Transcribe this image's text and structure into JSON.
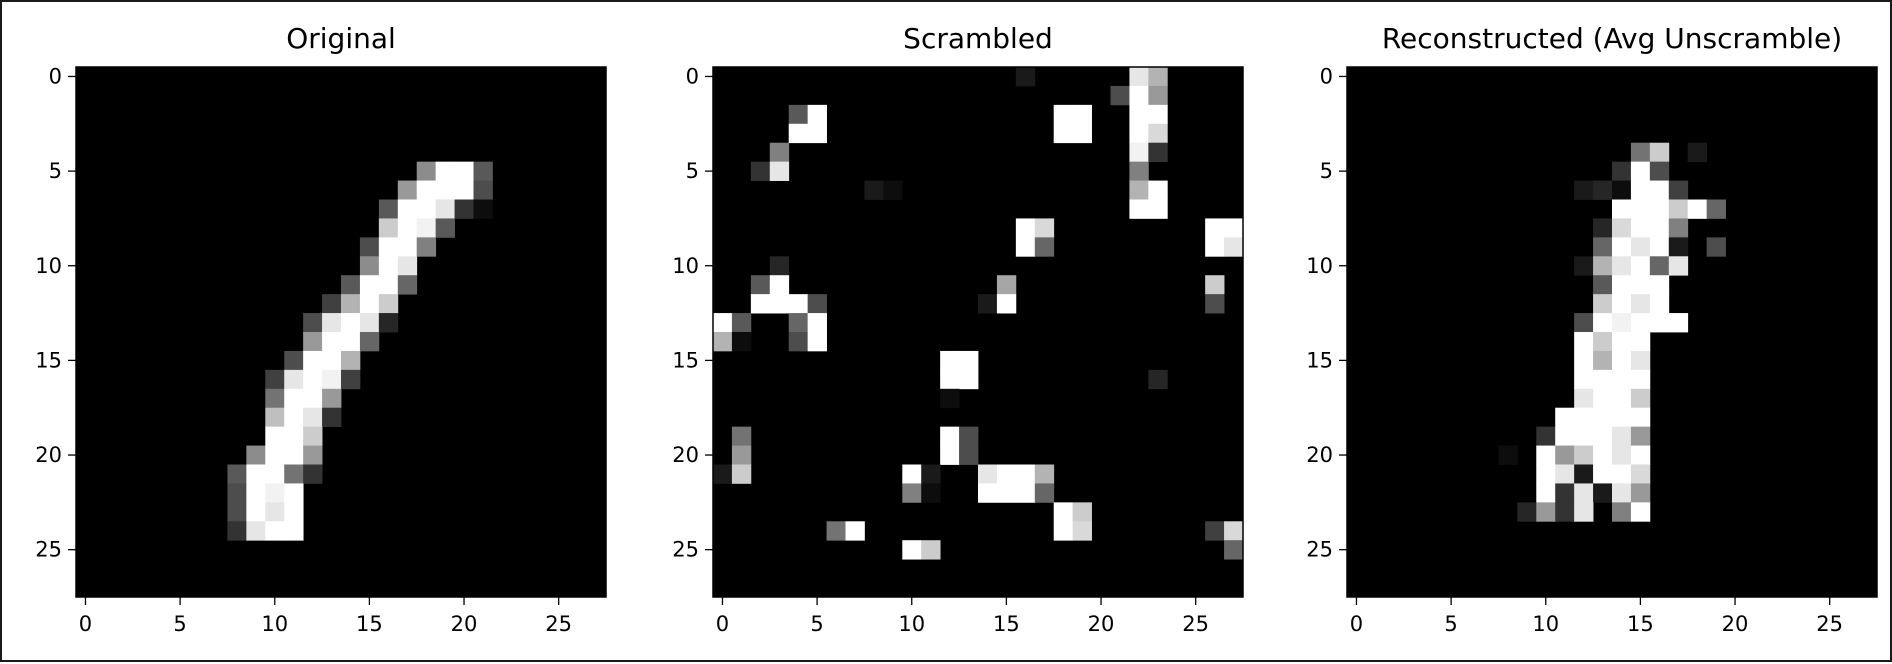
{
  "chart_data": [
    {
      "type": "heatmap",
      "title": "Original",
      "colormap": "gray",
      "shape": [
        28,
        28
      ],
      "xticks": [
        0,
        5,
        10,
        15,
        20,
        25
      ],
      "yticks": [
        0,
        5,
        10,
        15,
        20,
        25
      ],
      "background": 0,
      "pixels": [
        [
          5,
          18,
          0.55
        ],
        [
          5,
          19,
          1.0
        ],
        [
          5,
          20,
          1.0
        ],
        [
          5,
          21,
          0.35
        ],
        [
          6,
          17,
          0.6
        ],
        [
          6,
          18,
          1.0
        ],
        [
          6,
          19,
          1.0
        ],
        [
          6,
          20,
          1.0
        ],
        [
          6,
          21,
          0.3
        ],
        [
          7,
          16,
          0.35
        ],
        [
          7,
          17,
          1.0
        ],
        [
          7,
          18,
          1.0
        ],
        [
          7,
          19,
          0.9
        ],
        [
          7,
          20,
          0.2
        ],
        [
          7,
          21,
          0.05
        ],
        [
          8,
          16,
          0.8
        ],
        [
          8,
          17,
          1.0
        ],
        [
          8,
          18,
          0.95
        ],
        [
          8,
          19,
          0.35
        ],
        [
          9,
          15,
          0.3
        ],
        [
          9,
          16,
          1.0
        ],
        [
          9,
          17,
          1.0
        ],
        [
          9,
          18,
          0.5
        ],
        [
          10,
          15,
          0.55
        ],
        [
          10,
          16,
          1.0
        ],
        [
          10,
          17,
          0.9
        ],
        [
          11,
          14,
          0.35
        ],
        [
          11,
          15,
          1.0
        ],
        [
          11,
          16,
          1.0
        ],
        [
          11,
          17,
          0.4
        ],
        [
          12,
          13,
          0.25
        ],
        [
          12,
          14,
          0.7
        ],
        [
          12,
          15,
          1.0
        ],
        [
          12,
          16,
          0.8
        ],
        [
          13,
          12,
          0.3
        ],
        [
          13,
          13,
          0.9
        ],
        [
          13,
          14,
          1.0
        ],
        [
          13,
          15,
          0.9
        ],
        [
          13,
          16,
          0.15
        ],
        [
          14,
          12,
          0.6
        ],
        [
          14,
          13,
          1.0
        ],
        [
          14,
          14,
          1.0
        ],
        [
          14,
          15,
          0.4
        ],
        [
          15,
          11,
          0.3
        ],
        [
          15,
          12,
          1.0
        ],
        [
          15,
          13,
          1.0
        ],
        [
          15,
          14,
          0.7
        ],
        [
          16,
          10,
          0.25
        ],
        [
          16,
          11,
          0.9
        ],
        [
          16,
          12,
          1.0
        ],
        [
          16,
          13,
          0.95
        ],
        [
          16,
          14,
          0.25
        ],
        [
          17,
          10,
          0.45
        ],
        [
          17,
          11,
          1.0
        ],
        [
          17,
          12,
          1.0
        ],
        [
          17,
          13,
          0.6
        ],
        [
          18,
          10,
          0.75
        ],
        [
          18,
          11,
          1.0
        ],
        [
          18,
          12,
          0.9
        ],
        [
          18,
          13,
          0.2
        ],
        [
          19,
          10,
          1.0
        ],
        [
          19,
          11,
          1.0
        ],
        [
          19,
          12,
          0.8
        ],
        [
          20,
          9,
          0.55
        ],
        [
          20,
          10,
          1.0
        ],
        [
          20,
          11,
          1.0
        ],
        [
          20,
          12,
          0.6
        ],
        [
          21,
          8,
          0.35
        ],
        [
          21,
          9,
          1.0
        ],
        [
          21,
          10,
          1.0
        ],
        [
          21,
          11,
          0.45
        ],
        [
          21,
          12,
          0.2
        ],
        [
          22,
          8,
          0.3
        ],
        [
          22,
          9,
          1.0
        ],
        [
          22,
          10,
          0.95
        ],
        [
          22,
          11,
          1.0
        ],
        [
          23,
          8,
          0.3
        ],
        [
          23,
          9,
          1.0
        ],
        [
          23,
          10,
          0.9
        ],
        [
          23,
          11,
          1.0
        ],
        [
          24,
          8,
          0.2
        ],
        [
          24,
          9,
          0.9
        ],
        [
          24,
          10,
          1.0
        ],
        [
          24,
          11,
          1.0
        ]
      ]
    },
    {
      "type": "heatmap",
      "title": "Scrambled",
      "colormap": "gray",
      "shape": [
        28,
        28
      ],
      "xticks": [
        0,
        5,
        10,
        15,
        20,
        25
      ],
      "yticks": [
        0,
        5,
        10,
        15,
        20,
        25
      ],
      "background": 0,
      "pixels": [
        [
          0,
          16,
          0.1
        ],
        [
          0,
          22,
          0.9
        ],
        [
          0,
          23,
          0.7
        ],
        [
          1,
          21,
          0.3
        ],
        [
          1,
          22,
          1.0
        ],
        [
          1,
          23,
          0.6
        ],
        [
          2,
          4,
          0.35
        ],
        [
          2,
          5,
          1.0
        ],
        [
          2,
          18,
          1.0
        ],
        [
          2,
          19,
          1.0
        ],
        [
          2,
          22,
          1.0
        ],
        [
          2,
          23,
          1.0
        ],
        [
          3,
          4,
          1.0
        ],
        [
          3,
          5,
          1.0
        ],
        [
          3,
          18,
          1.0
        ],
        [
          3,
          19,
          1.0
        ],
        [
          3,
          22,
          1.0
        ],
        [
          3,
          23,
          0.85
        ],
        [
          4,
          3,
          0.5
        ],
        [
          4,
          22,
          0.95
        ],
        [
          4,
          23,
          0.2
        ],
        [
          5,
          2,
          0.2
        ],
        [
          5,
          3,
          0.9
        ],
        [
          5,
          22,
          0.5
        ],
        [
          6,
          8,
          0.1
        ],
        [
          6,
          9,
          0.05
        ],
        [
          6,
          22,
          0.7
        ],
        [
          6,
          23,
          1.0
        ],
        [
          7,
          22,
          1.0
        ],
        [
          7,
          23,
          1.0
        ],
        [
          8,
          16,
          1.0
        ],
        [
          8,
          17,
          0.85
        ],
        [
          8,
          26,
          1.0
        ],
        [
          8,
          27,
          1.0
        ],
        [
          9,
          16,
          1.0
        ],
        [
          9,
          17,
          0.4
        ],
        [
          9,
          26,
          1.0
        ],
        [
          9,
          27,
          0.9
        ],
        [
          10,
          3,
          0.15
        ],
        [
          11,
          2,
          0.35
        ],
        [
          11,
          3,
          1.0
        ],
        [
          11,
          15,
          0.65
        ],
        [
          11,
          26,
          0.8
        ],
        [
          12,
          2,
          1.0
        ],
        [
          12,
          3,
          1.0
        ],
        [
          12,
          4,
          1.0
        ],
        [
          12,
          5,
          0.3
        ],
        [
          12,
          14,
          0.1
        ],
        [
          12,
          15,
          1.0
        ],
        [
          12,
          26,
          0.3
        ],
        [
          13,
          0,
          1.0
        ],
        [
          13,
          1,
          0.35
        ],
        [
          13,
          4,
          0.4
        ],
        [
          13,
          5,
          1.0
        ],
        [
          14,
          0,
          0.7
        ],
        [
          14,
          1,
          0.05
        ],
        [
          14,
          4,
          0.3
        ],
        [
          14,
          5,
          1.0
        ],
        [
          15,
          12,
          1.0
        ],
        [
          15,
          13,
          1.0
        ],
        [
          16,
          12,
          1.0
        ],
        [
          16,
          13,
          1.0
        ],
        [
          16,
          23,
          0.15
        ],
        [
          17,
          12,
          0.05
        ],
        [
          19,
          1,
          0.45
        ],
        [
          19,
          12,
          1.0
        ],
        [
          19,
          13,
          0.3
        ],
        [
          20,
          1,
          0.6
        ],
        [
          20,
          12,
          1.0
        ],
        [
          20,
          13,
          0.3
        ],
        [
          21,
          0,
          0.1
        ],
        [
          21,
          1,
          0.8
        ],
        [
          21,
          10,
          1.0
        ],
        [
          21,
          11,
          0.1
        ],
        [
          21,
          14,
          0.9
        ],
        [
          21,
          15,
          1.0
        ],
        [
          21,
          16,
          1.0
        ],
        [
          21,
          17,
          0.7
        ],
        [
          22,
          10,
          0.5
        ],
        [
          22,
          11,
          0.05
        ],
        [
          22,
          14,
          1.0
        ],
        [
          22,
          15,
          1.0
        ],
        [
          22,
          16,
          1.0
        ],
        [
          22,
          17,
          0.4
        ],
        [
          23,
          18,
          1.0
        ],
        [
          23,
          19,
          0.8
        ],
        [
          24,
          6,
          0.45
        ],
        [
          24,
          7,
          1.0
        ],
        [
          24,
          18,
          1.0
        ],
        [
          24,
          19,
          0.85
        ],
        [
          24,
          26,
          0.25
        ],
        [
          24,
          27,
          0.85
        ],
        [
          25,
          10,
          1.0
        ],
        [
          25,
          11,
          0.8
        ],
        [
          25,
          27,
          0.4
        ]
      ]
    },
    {
      "type": "heatmap",
      "title": "Reconstructed (Avg Unscramble)",
      "colormap": "gray",
      "shape": [
        28,
        28
      ],
      "xticks": [
        0,
        5,
        10,
        15,
        20,
        25
      ],
      "yticks": [
        0,
        5,
        10,
        15,
        20,
        25
      ],
      "background": 0,
      "pixels": [
        [
          4,
          15,
          0.45
        ],
        [
          4,
          16,
          0.8
        ],
        [
          4,
          18,
          0.1
        ],
        [
          5,
          14,
          0.2
        ],
        [
          5,
          15,
          1.0
        ],
        [
          5,
          16,
          0.3
        ],
        [
          6,
          12,
          0.1
        ],
        [
          6,
          13,
          0.15
        ],
        [
          6,
          14,
          0.05
        ],
        [
          6,
          15,
          1.0
        ],
        [
          6,
          16,
          1.0
        ],
        [
          6,
          17,
          0.25
        ],
        [
          7,
          14,
          1.0
        ],
        [
          7,
          15,
          1.0
        ],
        [
          7,
          16,
          1.0
        ],
        [
          7,
          17,
          0.8
        ],
        [
          7,
          18,
          1.0
        ],
        [
          7,
          19,
          0.4
        ],
        [
          8,
          13,
          0.15
        ],
        [
          8,
          14,
          0.85
        ],
        [
          8,
          15,
          1.0
        ],
        [
          8,
          16,
          1.0
        ],
        [
          8,
          17,
          0.5
        ],
        [
          9,
          13,
          0.4
        ],
        [
          9,
          14,
          1.0
        ],
        [
          9,
          15,
          0.9
        ],
        [
          9,
          16,
          1.0
        ],
        [
          9,
          17,
          0.1
        ],
        [
          9,
          19,
          0.3
        ],
        [
          10,
          12,
          0.1
        ],
        [
          10,
          13,
          0.7
        ],
        [
          10,
          14,
          0.9
        ],
        [
          10,
          15,
          1.0
        ],
        [
          10,
          16,
          0.4
        ],
        [
          10,
          17,
          0.9
        ],
        [
          11,
          13,
          0.35
        ],
        [
          11,
          14,
          1.0
        ],
        [
          11,
          15,
          1.0
        ],
        [
          11,
          16,
          1.0
        ],
        [
          12,
          13,
          0.8
        ],
        [
          12,
          14,
          1.0
        ],
        [
          12,
          15,
          0.9
        ],
        [
          12,
          16,
          1.0
        ],
        [
          13,
          12,
          0.3
        ],
        [
          13,
          13,
          1.0
        ],
        [
          13,
          14,
          0.95
        ],
        [
          13,
          15,
          1.0
        ],
        [
          13,
          16,
          1.0
        ],
        [
          13,
          17,
          1.0
        ],
        [
          14,
          12,
          1.0
        ],
        [
          14,
          13,
          0.8
        ],
        [
          14,
          14,
          1.0
        ],
        [
          14,
          15,
          1.0
        ],
        [
          15,
          12,
          1.0
        ],
        [
          15,
          13,
          0.7
        ],
        [
          15,
          14,
          1.0
        ],
        [
          15,
          15,
          0.9
        ],
        [
          16,
          12,
          1.0
        ],
        [
          16,
          13,
          1.0
        ],
        [
          16,
          14,
          1.0
        ],
        [
          16,
          15,
          1.0
        ],
        [
          17,
          12,
          0.9
        ],
        [
          17,
          13,
          1.0
        ],
        [
          17,
          14,
          1.0
        ],
        [
          17,
          15,
          0.8
        ],
        [
          18,
          11,
          1.0
        ],
        [
          18,
          12,
          1.0
        ],
        [
          18,
          13,
          1.0
        ],
        [
          18,
          14,
          1.0
        ],
        [
          18,
          15,
          1.0
        ],
        [
          19,
          10,
          0.2
        ],
        [
          19,
          11,
          1.0
        ],
        [
          19,
          12,
          1.0
        ],
        [
          19,
          13,
          1.0
        ],
        [
          19,
          14,
          0.9
        ],
        [
          19,
          15,
          0.6
        ],
        [
          20,
          8,
          0.05
        ],
        [
          20,
          10,
          1.0
        ],
        [
          20,
          11,
          0.6
        ],
        [
          20,
          12,
          0.8
        ],
        [
          20,
          13,
          1.0
        ],
        [
          20,
          14,
          0.9
        ],
        [
          20,
          15,
          1.0
        ],
        [
          21,
          10,
          1.0
        ],
        [
          21,
          11,
          0.9
        ],
        [
          21,
          12,
          0.1
        ],
        [
          21,
          13,
          1.0
        ],
        [
          21,
          14,
          1.0
        ],
        [
          21,
          15,
          0.85
        ],
        [
          22,
          10,
          1.0
        ],
        [
          22,
          11,
          0.2
        ],
        [
          22,
          12,
          0.9
        ],
        [
          22,
          13,
          0.1
        ],
        [
          22,
          14,
          0.9
        ],
        [
          22,
          15,
          0.6
        ],
        [
          23,
          9,
          0.15
        ],
        [
          23,
          10,
          0.6
        ],
        [
          23,
          11,
          0.2
        ],
        [
          23,
          12,
          0.9
        ],
        [
          23,
          14,
          0.5
        ],
        [
          23,
          15,
          1.0
        ]
      ]
    }
  ]
}
